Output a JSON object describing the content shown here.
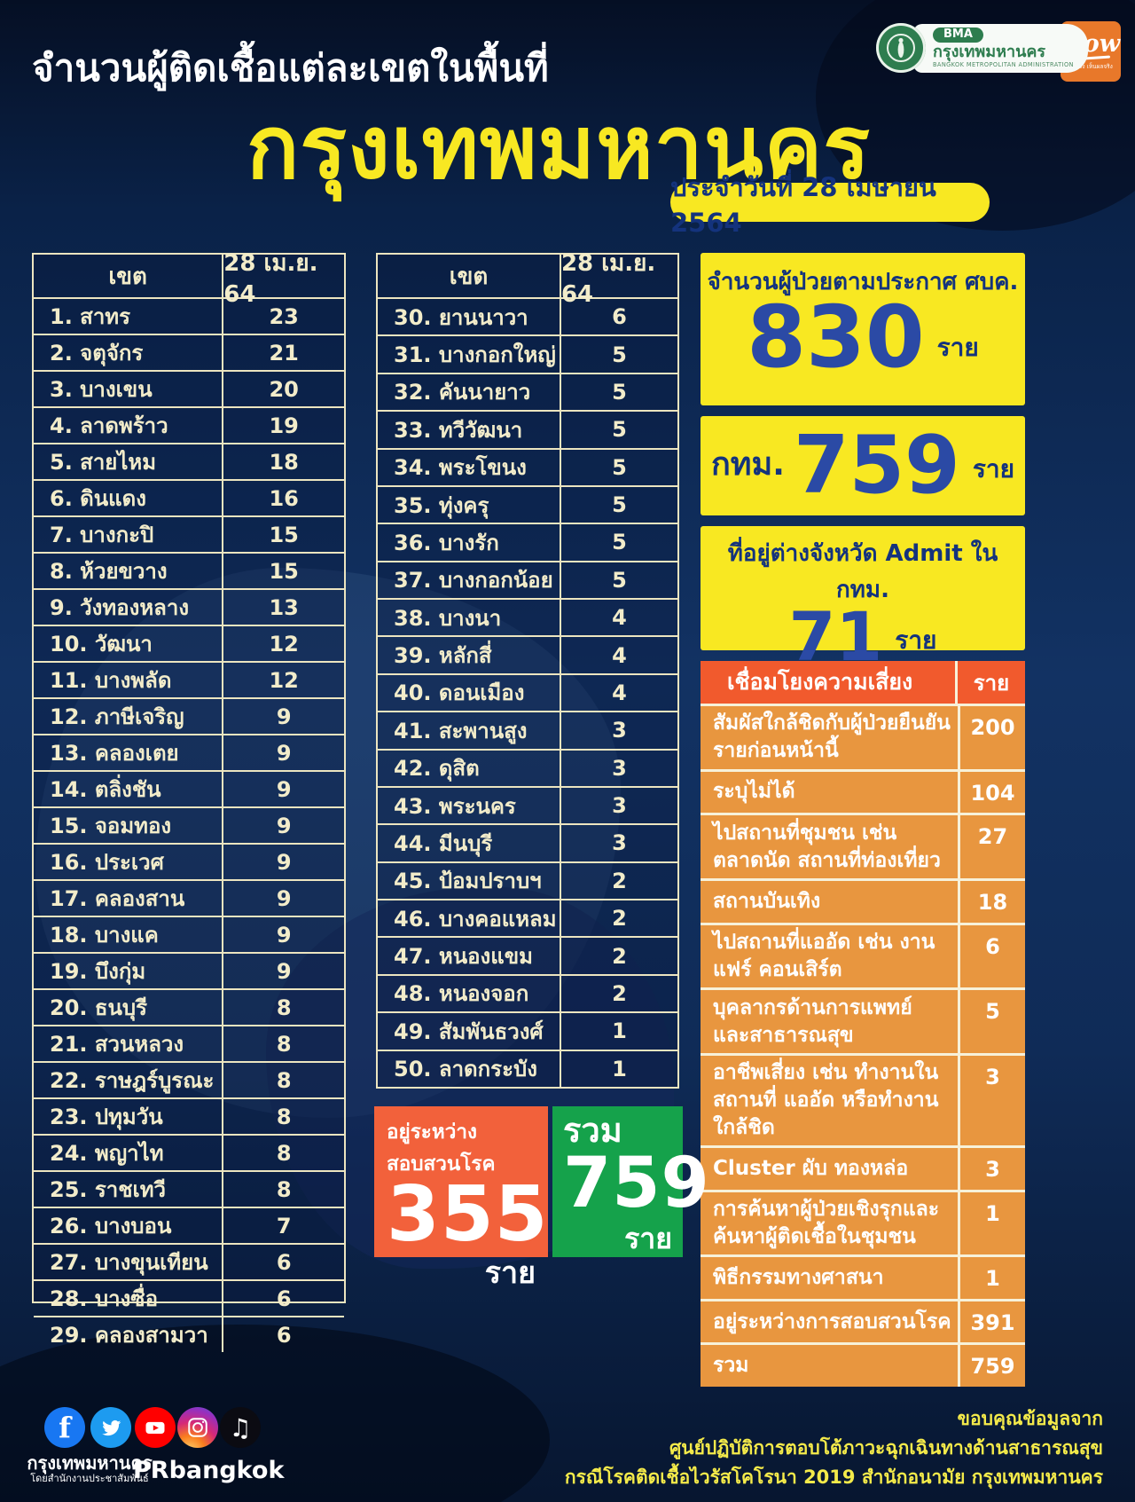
{
  "header": {
    "subtitle": "จำนวนผู้ติดเชื้อแต่ละเขตในพื้นที่",
    "title": "กรุงเทพมหานคร",
    "date_badge": "ประจำวันที่ 28 เมษายน 2564",
    "bma_logo": {
      "abbr": "BMA",
      "name": "กรุงเทพมหานคร",
      "subname": "BANGKOK METROPOLITAN ADMINISTRATION"
    },
    "now_logo": {
      "title": "Now",
      "tagline": "ทำจริง เห็นผลจริง"
    }
  },
  "district_tables": {
    "col_district": "เขต",
    "col_date": "28 เม.ย. 64",
    "table1": [
      {
        "name": "1. สาทร",
        "value": "23"
      },
      {
        "name": "2. จตุจักร",
        "value": "21"
      },
      {
        "name": "3. บางเขน",
        "value": "20"
      },
      {
        "name": "4. ลาดพร้าว",
        "value": "19"
      },
      {
        "name": "5. สายไหม",
        "value": "18"
      },
      {
        "name": "6. ดินแดง",
        "value": "16"
      },
      {
        "name": "7. บางกะปิ",
        "value": "15"
      },
      {
        "name": "8. ห้วยขวาง",
        "value": "15"
      },
      {
        "name": "9. วังทองหลาง",
        "value": "13"
      },
      {
        "name": "10. วัฒนา",
        "value": "12"
      },
      {
        "name": "11. บางพลัด",
        "value": "12"
      },
      {
        "name": "12. ภาษีเจริญ",
        "value": "9"
      },
      {
        "name": "13. คลองเตย",
        "value": "9"
      },
      {
        "name": "14. ตลิ่งชัน",
        "value": "9"
      },
      {
        "name": "15. จอมทอง",
        "value": "9"
      },
      {
        "name": "16. ประเวศ",
        "value": "9"
      },
      {
        "name": "17. คลองสาน",
        "value": "9"
      },
      {
        "name": "18. บางแค",
        "value": "9"
      },
      {
        "name": "19. บึงกุ่ม",
        "value": "9"
      },
      {
        "name": "20. ธนบุรี",
        "value": "8"
      },
      {
        "name": "21. สวนหลวง",
        "value": "8"
      },
      {
        "name": "22. ราษฎร์บูรณะ",
        "value": "8"
      },
      {
        "name": "23. ปทุมวัน",
        "value": "8"
      },
      {
        "name": "24. พญาไท",
        "value": "8"
      },
      {
        "name": "25. ราชเทวี",
        "value": "8"
      },
      {
        "name": "26. บางบอน",
        "value": "7"
      },
      {
        "name": "27. บางขุนเทียน",
        "value": "6"
      },
      {
        "name": "28. บางซื่อ",
        "value": "6"
      },
      {
        "name": "29. คลองสามวา",
        "value": "6"
      }
    ],
    "table2": [
      {
        "name": "30. ยานนาวา",
        "value": "6"
      },
      {
        "name": "31. บางกอกใหญ่",
        "value": "5"
      },
      {
        "name": "32. คันนายาว",
        "value": "5"
      },
      {
        "name": "33. ทวีวัฒนา",
        "value": "5"
      },
      {
        "name": "34. พระโขนง",
        "value": "5"
      },
      {
        "name": "35. ทุ่งครุ",
        "value": "5"
      },
      {
        "name": "36. บางรัก",
        "value": "5"
      },
      {
        "name": "37. บางกอกน้อย",
        "value": "5"
      },
      {
        "name": "38. บางนา",
        "value": "4"
      },
      {
        "name": "39. หลักสี่",
        "value": "4"
      },
      {
        "name": "40. ดอนเมือง",
        "value": "4"
      },
      {
        "name": "41. สะพานสูง",
        "value": "3"
      },
      {
        "name": "42. ดุสิต",
        "value": "3"
      },
      {
        "name": "43. พระนคร",
        "value": "3"
      },
      {
        "name": "44. มีนบุรี",
        "value": "3"
      },
      {
        "name": "45. ป้อมปราบฯ",
        "value": "2"
      },
      {
        "name": "46. บางคอแหลม",
        "value": "2"
      },
      {
        "name": "47. หนองแขม",
        "value": "2"
      },
      {
        "name": "48. หนองจอก",
        "value": "2"
      },
      {
        "name": "49. สัมพันธวงศ์",
        "value": "1"
      },
      {
        "name": "50. ลาดกระบัง",
        "value": "1"
      }
    ]
  },
  "summary_boxes": {
    "announced": {
      "label": "จำนวนผู้ป่วยตามประกาศ ศบค.",
      "value": "830",
      "unit": "ราย"
    },
    "bkk": {
      "prefix": "กทม.",
      "value": "759",
      "unit": "ราย"
    },
    "other_province": {
      "label": "ที่อยู่ต่างจังหวัด Admit ใน กทม.",
      "value": "71",
      "unit": "ราย"
    },
    "investigating": {
      "label": "อยู่ระหว่างสอบสวนโรค",
      "value": "355",
      "unit": "ราย"
    },
    "total": {
      "label": "รวม",
      "value": "759",
      "unit": "ราย"
    }
  },
  "risk_table": {
    "header_label": "เชื่อมโยงความเสี่ยง",
    "header_unit": "ราย",
    "rows": [
      {
        "label": "สัมผัสใกล้ชิดกับผู้ป่วยยืนยัน รายก่อนหน้านี้",
        "value": "200",
        "lines": 2
      },
      {
        "label": "ระบุไม่ได้",
        "value": "104",
        "lines": 1
      },
      {
        "label": "ไปสถานที่ชุมชน เช่น ตลาดนัด สถานที่ท่องเที่ยว",
        "value": "27",
        "lines": 2
      },
      {
        "label": "สถานบันเทิง",
        "value": "18",
        "lines": 1
      },
      {
        "label": "ไปสถานที่แออัด เช่น งานแฟร์ คอนเสิร์ต",
        "value": "6",
        "lines": 2
      },
      {
        "label": "บุคลากรด้านการแพทย์ และสาธารณสุข",
        "value": "5",
        "lines": 2
      },
      {
        "label": "อาชีพเสี่ยง เช่น ทำงานในสถานที่ แออัด หรือทำงานใกล้ชิด",
        "value": "3",
        "lines": 2
      },
      {
        "label": "Cluster ผับ ทองหล่อ",
        "value": "3",
        "lines": 1
      },
      {
        "label": "การค้นหาผู้ป่วยเชิงรุกและ ค้นหาผู้ติดเชื้อในชุมชน",
        "value": "1",
        "lines": 2
      },
      {
        "label": "พิธีกรรมทางศาสนา",
        "value": "1",
        "lines": 1
      },
      {
        "label": "อยู่ระหว่างการสอบสวนโรค",
        "value": "391",
        "lines": 1
      },
      {
        "label": "รวม",
        "value": "759",
        "lines": 1
      }
    ]
  },
  "footer": {
    "icons": [
      "facebook",
      "twitter",
      "youtube",
      "instagram",
      "tiktok"
    ],
    "social_group1_label": "กรุงเทพมหานคร",
    "social_group1_sublabel": "โดยสำนักงานประชาสัมพันธ์",
    "social_group2_label": "PRbangkok",
    "credit_lines": [
      "ขอบคุณข้อมูลจาก",
      "ศูนย์ปฏิบัติการตอบโต้ภาวะฉุกเฉินทางด้านสาธารณสุข",
      "กรณีโรคติดเชื้อไวรัสโคโรนา 2019 สำนักอนามัย กรุงเทพมหานคร"
    ]
  },
  "colors": {
    "background_navy": "#0f2b57",
    "title_yellow": "#f8e822",
    "table_border_cream": "#ece5c0",
    "number_blue": "#2b4aa5",
    "risk_header_orange": "#f15a2d",
    "risk_row_orange": "#e8963f",
    "investigating_orange": "#f2613b",
    "total_green": "#15a24b",
    "bma_green": "#2e7d4f",
    "now_orange": "#e8782a"
  }
}
